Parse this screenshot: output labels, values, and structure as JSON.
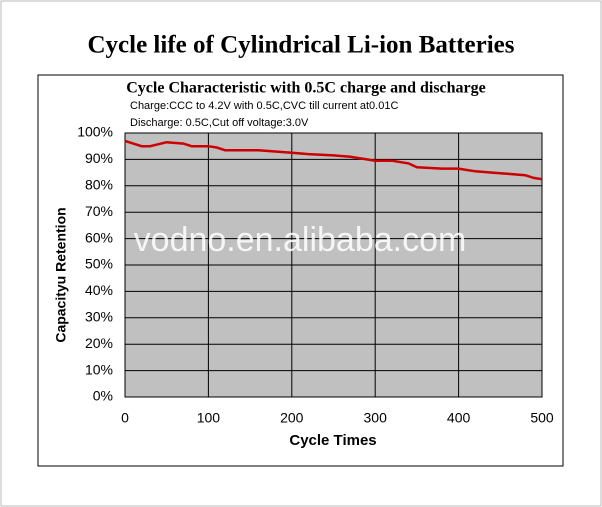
{
  "header": {
    "title": "Cycle life of Cylindrical Li-ion Batteries"
  },
  "chart_data": {
    "type": "line",
    "title": "Cycle Characteristic with 0.5C charge and discharge",
    "annotations": [
      "Charge:CCC to 4.2V with 0.5C,CVC till current at0.01C",
      "Discharge: 0.5C,Cut off voltage:3.0V",
      "vodno.en.alibaba.com"
    ],
    "x_label": "Cycle Times",
    "y_label": "Capacityu Retention",
    "x": [
      0,
      10,
      20,
      30,
      50,
      70,
      80,
      100,
      110,
      120,
      140,
      160,
      180,
      200,
      220,
      250,
      270,
      290,
      300,
      320,
      340,
      350,
      380,
      400,
      410,
      420,
      440,
      460,
      480,
      490,
      500
    ],
    "series": [
      {
        "name": "Capacity retention",
        "color": "#cc0000",
        "values": [
          97,
          96,
          95,
          95,
          96.5,
          96,
          95,
          95,
          94.5,
          93.5,
          93.5,
          93.5,
          93,
          92.5,
          92,
          91.5,
          91,
          90,
          89.5,
          89.5,
          88.5,
          87,
          86.5,
          86.5,
          86,
          85.5,
          85,
          84.5,
          84,
          83,
          82.5
        ]
      }
    ],
    "xlim": [
      0,
      500
    ],
    "xticks": [
      0,
      100,
      200,
      300,
      400,
      500
    ],
    "ylim": [
      0,
      100
    ],
    "yticks": [
      {
        "value": 0,
        "label": "0%"
      },
      {
        "value": 10,
        "label": "10%"
      },
      {
        "value": 20,
        "label": "20%"
      },
      {
        "value": 30,
        "label": "30%"
      },
      {
        "value": 40,
        "label": "40%"
      },
      {
        "value": 50,
        "label": "50%"
      },
      {
        "value": 60,
        "label": "60%"
      },
      {
        "value": 70,
        "label": "70%"
      },
      {
        "value": 80,
        "label": "80%"
      },
      {
        "value": 90,
        "label": "90%"
      },
      {
        "value": 100,
        "label": "100%"
      }
    ],
    "grid": true,
    "background": "#c0c0c0"
  }
}
